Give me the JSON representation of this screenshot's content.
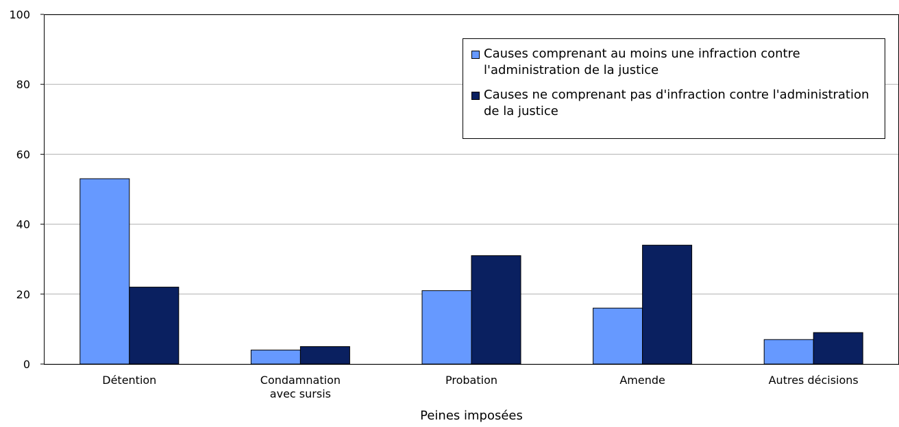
{
  "chart_data": {
    "type": "bar",
    "x_label": "Peines imposées",
    "categories": [
      "Détention",
      "Condamnation avec sursis",
      "Probation",
      "Amende",
      "Autres décisions"
    ],
    "series": [
      {
        "name": "Causes comprenant au moins une infraction contre l'administration de la justice",
        "color": "#6699ff",
        "values": [
          53,
          4,
          21,
          16,
          7
        ]
      },
      {
        "name": "Causes ne comprenant pas d'infraction contre l'administration de la justice",
        "color": "#0a2060",
        "values": [
          22,
          5,
          31,
          34,
          9
        ]
      }
    ],
    "ylim": [
      0,
      100
    ],
    "yticks": [
      0,
      20,
      40,
      60,
      80,
      100
    ],
    "grid": true,
    "legend": "top-right"
  }
}
